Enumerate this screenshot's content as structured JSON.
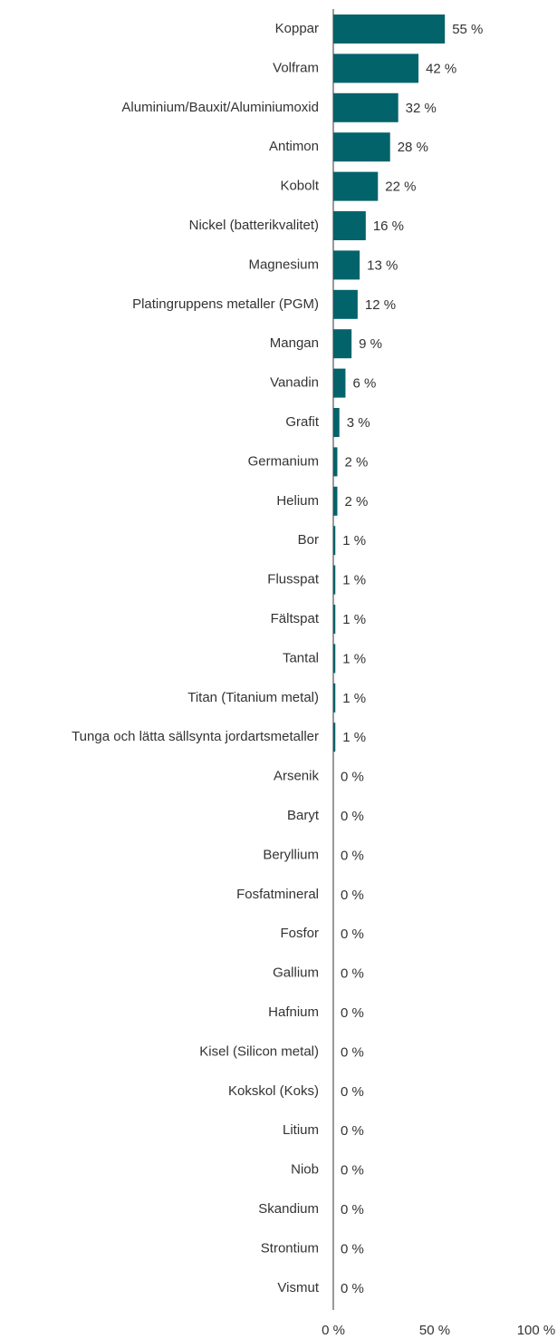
{
  "chart_data": {
    "type": "barh",
    "categories": [
      "Koppar",
      "Volfram",
      "Aluminium/Bauxit/Aluminiumoxid",
      "Antimon",
      "Kobolt",
      "Nickel (batterikvalitet)",
      "Magnesium",
      "Platingruppens metaller (PGM)",
      "Mangan",
      "Vanadin",
      "Grafit",
      "Germanium",
      "Helium",
      "Bor",
      "Flusspat",
      "Fältspat",
      "Tantal",
      "Titan (Titanium metal)",
      "Tunga och lätta sällsynta jordartsmetaller",
      "Arsenik",
      "Baryt",
      "Beryllium",
      "Fosfatmineral",
      "Fosfor",
      "Gallium",
      "Hafnium",
      "Kisel (Silicon metal)",
      "Kokskol (Koks)",
      "Litium",
      "Niob",
      "Skandium",
      "Strontium",
      "Vismut"
    ],
    "values": [
      55,
      42,
      32,
      28,
      22,
      16,
      13,
      12,
      9,
      6,
      3,
      2,
      2,
      1,
      1,
      1,
      1,
      1,
      1,
      0,
      0,
      0,
      0,
      0,
      0,
      0,
      0,
      0,
      0,
      0,
      0,
      0,
      0
    ],
    "value_labels": [
      "55 %",
      "42 %",
      "32 %",
      "28 %",
      "22 %",
      "16 %",
      "13 %",
      "12 %",
      "9 %",
      "6 %",
      "3 %",
      "2 %",
      "2 %",
      "1 %",
      "1 %",
      "1 %",
      "1 %",
      "1 %",
      "1 %",
      "0 %",
      "0 %",
      "0 %",
      "0 %",
      "0 %",
      "0 %",
      "0 %",
      "0 %",
      "0 %",
      "0 %",
      "0 %",
      "0 %",
      "0 %",
      "0 %"
    ],
    "color": "#03636b",
    "xlim": [
      0,
      100
    ],
    "xticks": [
      {
        "value": 0,
        "label": "0 %"
      },
      {
        "value": 50,
        "label": "50 %"
      },
      {
        "value": 100,
        "label": "100 %"
      }
    ]
  }
}
